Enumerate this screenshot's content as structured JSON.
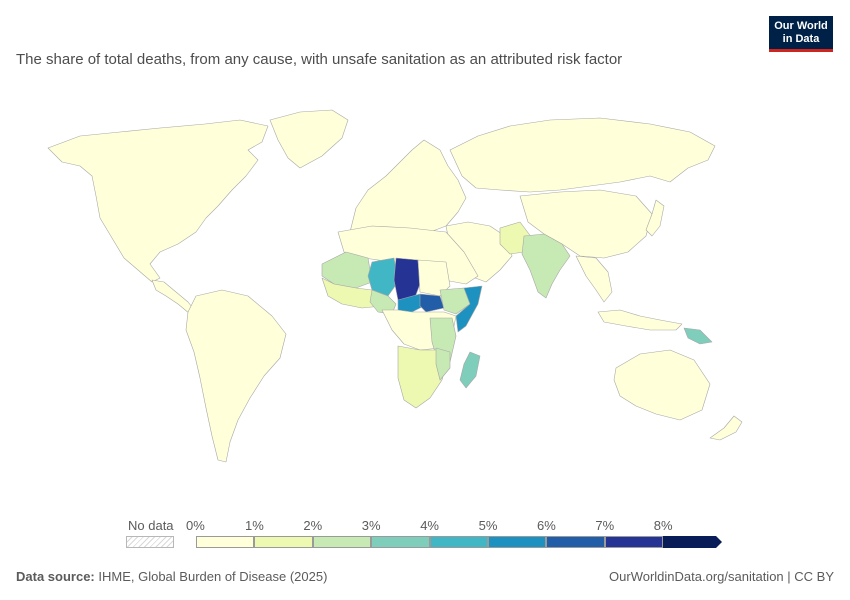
{
  "title": "The share of total deaths, from any cause, with unsafe sanitation as an attributed risk factor",
  "logo": {
    "line1": "Our World",
    "line2": "in Data"
  },
  "legend": {
    "no_data_label": "No data",
    "tick_labels": [
      "0%",
      "1%",
      "2%",
      "3%",
      "4%",
      "5%",
      "6%",
      "7%",
      "8%"
    ],
    "bin_colors": [
      "#ffffd9",
      "#edf8b1",
      "#c7e9b4",
      "#7fcdbb",
      "#41b6c4",
      "#1d91c0",
      "#225ea8",
      "#253494",
      "#081d58"
    ]
  },
  "map_data": {
    "metric": "share of total deaths attributed to unsafe sanitation (%)",
    "regions": [
      {
        "region": "Chad",
        "band": "7-8%"
      },
      {
        "region": "South Sudan",
        "band": "6-7%"
      },
      {
        "region": "Central African Republic",
        "band": "5-6%"
      },
      {
        "region": "Somalia",
        "band": "5-6%"
      },
      {
        "region": "Niger",
        "band": "4-5%"
      },
      {
        "region": "Madagascar",
        "band": "3-4%"
      },
      {
        "region": "Mali",
        "band": "2-3%"
      },
      {
        "region": "Nigeria",
        "band": "1-2%"
      },
      {
        "region": "Ethiopia",
        "band": "2-3%"
      },
      {
        "region": "India",
        "band": "2-3%"
      },
      {
        "region": "Papua New Guinea",
        "band": "3-4%"
      },
      {
        "region": "Americas, Europe, Russia, China, Australia",
        "band": "0-1%"
      }
    ]
  },
  "footer": {
    "source_label": "Data source:",
    "source_text": "IHME, Global Burden of Disease (2025)",
    "right_text": "OurWorldinData.org/sanitation | CC BY"
  }
}
